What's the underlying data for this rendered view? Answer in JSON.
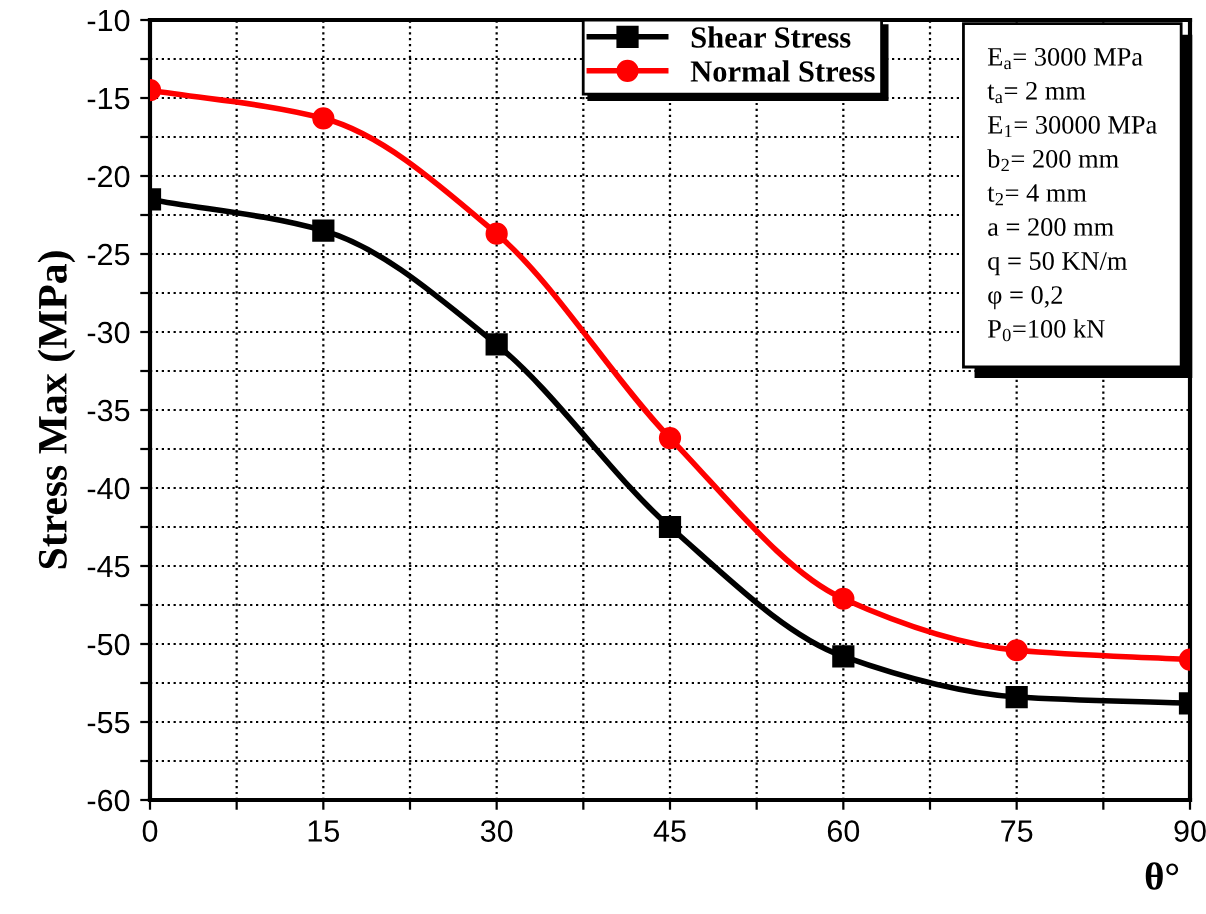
{
  "chart_data": {
    "type": "line",
    "ylabel": "Stress Max (MPa)",
    "xlabel": "θ°",
    "x": [
      0,
      15,
      30,
      45,
      60,
      75,
      90
    ],
    "series": [
      {
        "name": "Shear Stress",
        "color": "#000000",
        "marker": "square",
        "values": [
          -21.5,
          -23.5,
          -30.8,
          -42.5,
          -50.8,
          -53.4,
          -53.8
        ]
      },
      {
        "name": "Normal Stress",
        "color": "#ff0000",
        "marker": "circle",
        "values": [
          -14.5,
          -16.3,
          -23.7,
          -36.8,
          -47.1,
          -50.4,
          -51.0
        ]
      }
    ],
    "xlim": [
      0,
      90
    ],
    "xticks": [
      0,
      {
        "value": 7.5,
        "label": null
      },
      15,
      {
        "value": 22.5,
        "label": null
      },
      30,
      {
        "value": 37.5,
        "label": null
      },
      45,
      {
        "value": 52.5,
        "label": null
      },
      60,
      {
        "value": 67.5,
        "label": null
      },
      75,
      {
        "value": 82.5,
        "label": null
      },
      90
    ],
    "ylim": [
      -60,
      -10
    ],
    "yticks": [
      -60,
      {
        "value": -57.5,
        "label": null
      },
      -55,
      {
        "value": -52.5,
        "label": null
      },
      -50,
      {
        "value": -47.5,
        "label": null
      },
      -45,
      {
        "value": -42.5,
        "label": null
      },
      -40,
      {
        "value": -37.5,
        "label": null
      },
      -35,
      {
        "value": -32.5,
        "label": null
      },
      -30,
      {
        "value": -27.5,
        "label": null
      },
      -25,
      {
        "value": -22.5,
        "label": null
      },
      -20,
      {
        "value": -17.5,
        "label": null
      },
      -15,
      {
        "value": -12.5,
        "label": null
      },
      -10
    ],
    "grid": true,
    "legend": "top",
    "line_style": "solid",
    "annotations": [
      "E$_{a}$= 3000 MPa",
      "t$_{a}$= 2 mm",
      "E$_{1}$= 30000 MPa",
      "b$_{2}$= 200 mm",
      "t$_{2}$= 4 mm",
      "a = 200 mm",
      "q = 50 KN/m",
      "φ = 0,2",
      "P$_{0}$=100 kN"
    ]
  }
}
